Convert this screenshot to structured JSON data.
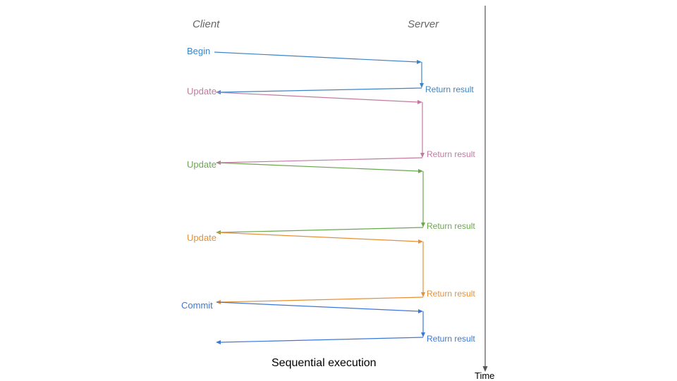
{
  "headers": {
    "client": "Client",
    "server": "Server"
  },
  "caption": "Sequential execution",
  "time_axis_label": "Time",
  "axis_color": "#555555",
  "steps": [
    {
      "client_label": "Begin",
      "server_label": "Return result",
      "color": "#3d85c6"
    },
    {
      "client_label": "Update",
      "server_label": "Return result",
      "color": "#c27ba0"
    },
    {
      "client_label": "Update",
      "server_label": "Return result",
      "color": "#6aa84f"
    },
    {
      "client_label": "Update",
      "server_label": "Return result",
      "color": "#e69138"
    },
    {
      "client_label": "Commit",
      "server_label": "Return result",
      "color": "#3c78d8"
    }
  ]
}
